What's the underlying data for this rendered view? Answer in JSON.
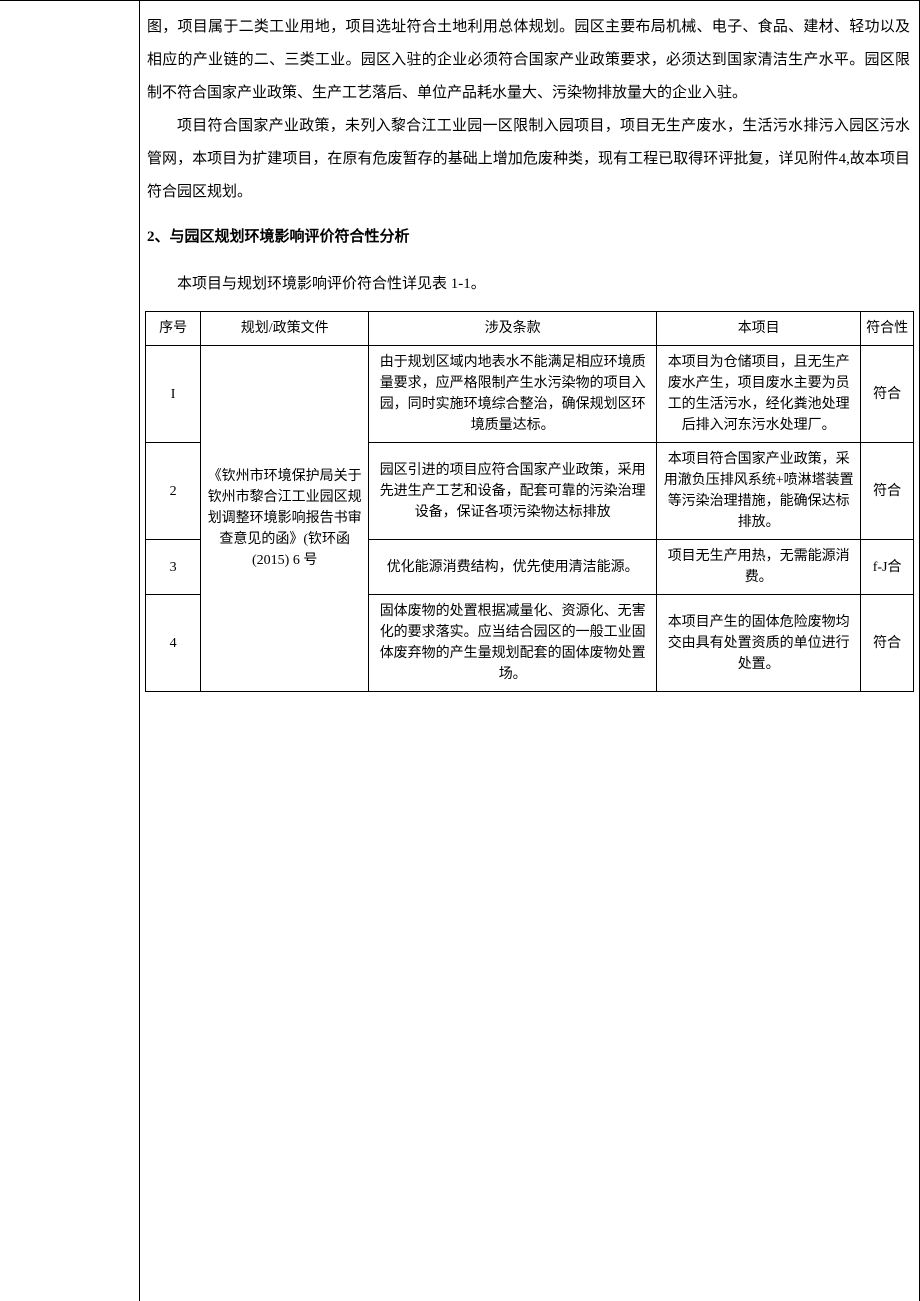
{
  "intro": {
    "p1_a": "图，项目属于二类工业用地，项目选址符合土地利用总体规划。园区主要布局机械、电子、食品、建材、轻功以及相应的产业链的二、三类工业。园区入驻的企业必须符合国家产业政策要求，必须达到国家清洁生产水平。园区限制不符合国家产业政策、生产工艺落后、单位产品耗水量大、污染物排放量大的企业入驻。",
    "p2": "项目符合国家产业政策，未列入黎合江工业园一区限制入园项目，项目无生产废水，生活污水排污入园区污水管网，本项目为扩建项目，在原有危废暂存的基础上增加危废种类，现有工程已取得环评批复，详见附件4,故本项目符合园区规划。"
  },
  "heading": "2、与园区规划环境影响评价符合性分析",
  "table_caption": "本项目与规划环境影响评价符合性详见表 1-1。",
  "table": {
    "headers": {
      "idx": "序号",
      "policy": "规划/政策文件",
      "item": "涉及条款",
      "project": "本项目",
      "conform": "符合性"
    },
    "policy_doc": "《钦州市环境保护局关于钦州市黎合江工业园区规划调整环境影响报告书审查意见的函》(钦环函(2015) 6 号",
    "rows": [
      {
        "idx": "I",
        "item": "由于规划区域内地表水不能满足相应环境质量要求，应严格限制产生水污染物的项目入园，同时实施环境综合整治，确保规划区环\n境质量达标。",
        "project": "本项目为仓储项目，且无生产废水产生，项目废水主要为员工的生活污水，经化粪池处理后排入河东污水处理厂。",
        "conform": "符合"
      },
      {
        "idx": "2",
        "item": "园区引进的项目应符合国家产业政策，采用先进生产工艺和设备，配套可靠的污染治理设备，保证各项污染物达标排放",
        "project": "本项目符合国家产业政策，采用澈负压排风系统+喷淋塔装置等污染治理措施，能确保达标排放。",
        "conform": "符合"
      },
      {
        "idx": "3",
        "item": "优化能源消费结构，优先使用清洁能源。",
        "project": "项目无生产用热，无需能源消费。",
        "conform": "f-J合"
      },
      {
        "idx": "4",
        "item": "固体废物的处置根据减量化、资源化、无害化的要求落实。应当结合园区的一般工业固体废弃物的产生量规划配套的固体废物处置场。",
        "project": "本项目产生的固体危险废物均交由具有处置资质的单位进行处置。",
        "conform": "符合"
      }
    ]
  }
}
